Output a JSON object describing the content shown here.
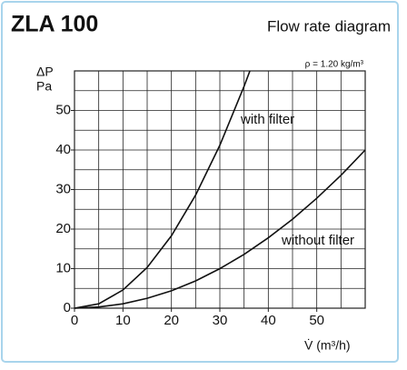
{
  "chart_data": {
    "type": "line",
    "title": "ZLA 100",
    "subtitle": "Flow rate diagram",
    "annotation": "ρ = 1.20 kg/m³",
    "x_label": "V̇ (m³/h)",
    "y_label": "ΔP",
    "y_unit": "Pa",
    "xlim": [
      0,
      60
    ],
    "ylim": [
      0,
      60
    ],
    "xticks": [
      0,
      10,
      20,
      30,
      40,
      50
    ],
    "yticks": [
      0,
      10,
      20,
      30,
      40,
      50
    ],
    "grid": true,
    "grid_step": 5,
    "series": [
      {
        "name": "with filter",
        "color": "#111111",
        "x": [
          0,
          5,
          10,
          15,
          20,
          25,
          30,
          35,
          36.2
        ],
        "values": [
          0,
          1.1,
          4.6,
          10.3,
          18.3,
          28.6,
          41.2,
          56.1,
          60
        ]
      },
      {
        "name": "without filter",
        "color": "#111111",
        "x": [
          0,
          5,
          10,
          15,
          20,
          25,
          30,
          35,
          40,
          45,
          50,
          55,
          60
        ],
        "values": [
          0,
          0.3,
          1.1,
          2.5,
          4.4,
          6.9,
          10,
          13.6,
          17.8,
          22.5,
          27.8,
          33.6,
          40
        ]
      }
    ]
  }
}
